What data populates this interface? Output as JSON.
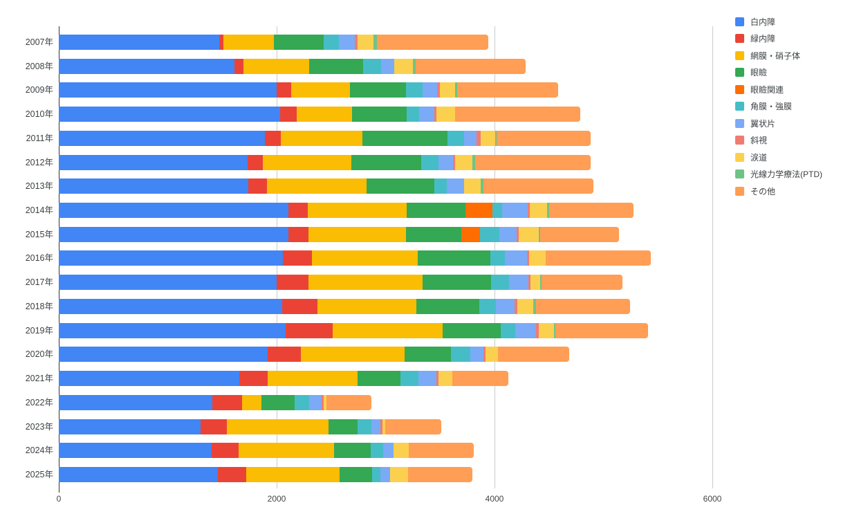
{
  "chart_data": {
    "type": "bar",
    "stacked": true,
    "orientation": "horizontal",
    "title": "",
    "xlabel": "",
    "ylabel": "",
    "grid": true,
    "legend_position": "right",
    "x_ticks": [
      0,
      2000,
      4000,
      6000
    ],
    "xlim": [
      0,
      6000
    ],
    "categories": [
      "2007年",
      "2008年",
      "2009年",
      "2010年",
      "2011年",
      "2012年",
      "2013年",
      "2014年",
      "2015年",
      "2016年",
      "2017年",
      "2018年",
      "2019年",
      "2020年",
      "2021年",
      "2022年",
      "2023年",
      "2024年",
      "2025年"
    ],
    "series": [
      {
        "name": "白内障",
        "color": "#4285F4",
        "values": [
          1470,
          1610,
          2000,
          2030,
          1890,
          1735,
          1740,
          2110,
          2110,
          2060,
          2000,
          2050,
          2080,
          1920,
          1660,
          1410,
          1300,
          1400,
          1460
        ]
      },
      {
        "name": "緑内障",
        "color": "#EA4335",
        "values": [
          40,
          85,
          135,
          155,
          145,
          140,
          170,
          175,
          180,
          265,
          290,
          325,
          435,
          300,
          260,
          270,
          245,
          250,
          260
        ]
      },
      {
        "name": "網膜・硝子体",
        "color": "#FBBC04",
        "values": [
          465,
          605,
          535,
          505,
          750,
          810,
          915,
          910,
          900,
          970,
          1050,
          905,
          1010,
          955,
          825,
          180,
          930,
          875,
          855
        ]
      },
      {
        "name": "眼瞼",
        "color": "#34A853",
        "values": [
          455,
          495,
          520,
          505,
          785,
          645,
          620,
          540,
          505,
          665,
          630,
          580,
          530,
          425,
          390,
          305,
          270,
          340,
          300
        ]
      },
      {
        "name": "眼瞼関連",
        "color": "#FF6D01",
        "values": [
          0,
          0,
          0,
          0,
          0,
          0,
          0,
          245,
          170,
          0,
          0,
          0,
          0,
          0,
          0,
          0,
          0,
          0,
          0
        ]
      },
      {
        "name": "角膜・強膜",
        "color": "#46BDC6",
        "values": [
          140,
          165,
          150,
          110,
          150,
          155,
          120,
          90,
          180,
          135,
          165,
          155,
          135,
          175,
          165,
          135,
          125,
          115,
          80
        ]
      },
      {
        "name": "翼状片",
        "color": "#7BAAF7",
        "values": [
          145,
          120,
          135,
          140,
          115,
          135,
          155,
          235,
          160,
          205,
          175,
          170,
          190,
          125,
          165,
          115,
          85,
          90,
          85
        ]
      },
      {
        "name": "斜視",
        "color": "#F07B72",
        "values": [
          25,
          0,
          25,
          20,
          40,
          20,
          0,
          20,
          20,
          20,
          20,
          25,
          25,
          20,
          20,
          15,
          15,
          0,
          0
        ]
      },
      {
        "name": "涙道",
        "color": "#FCD04F",
        "values": [
          150,
          170,
          140,
          175,
          130,
          155,
          155,
          160,
          180,
          150,
          90,
          145,
          140,
          110,
          125,
          30,
          25,
          145,
          165
        ]
      },
      {
        "name": "光線力学療法(PTD)",
        "color": "#71C287",
        "values": [
          30,
          25,
          15,
          0,
          15,
          25,
          25,
          15,
          15,
          0,
          15,
          25,
          15,
          0,
          0,
          0,
          0,
          0,
          0
        ]
      },
      {
        "name": "その他",
        "color": "#FF9E54",
        "values": [
          1020,
          1010,
          930,
          1150,
          860,
          1060,
          1010,
          775,
          725,
          965,
          740,
          865,
          850,
          655,
          515,
          410,
          515,
          595,
          595
        ]
      }
    ]
  },
  "layout_colors": {
    "gridline": "#cccccc",
    "baseline": "#333333",
    "axis_text": "#444444",
    "label_text": "#3c4043"
  }
}
